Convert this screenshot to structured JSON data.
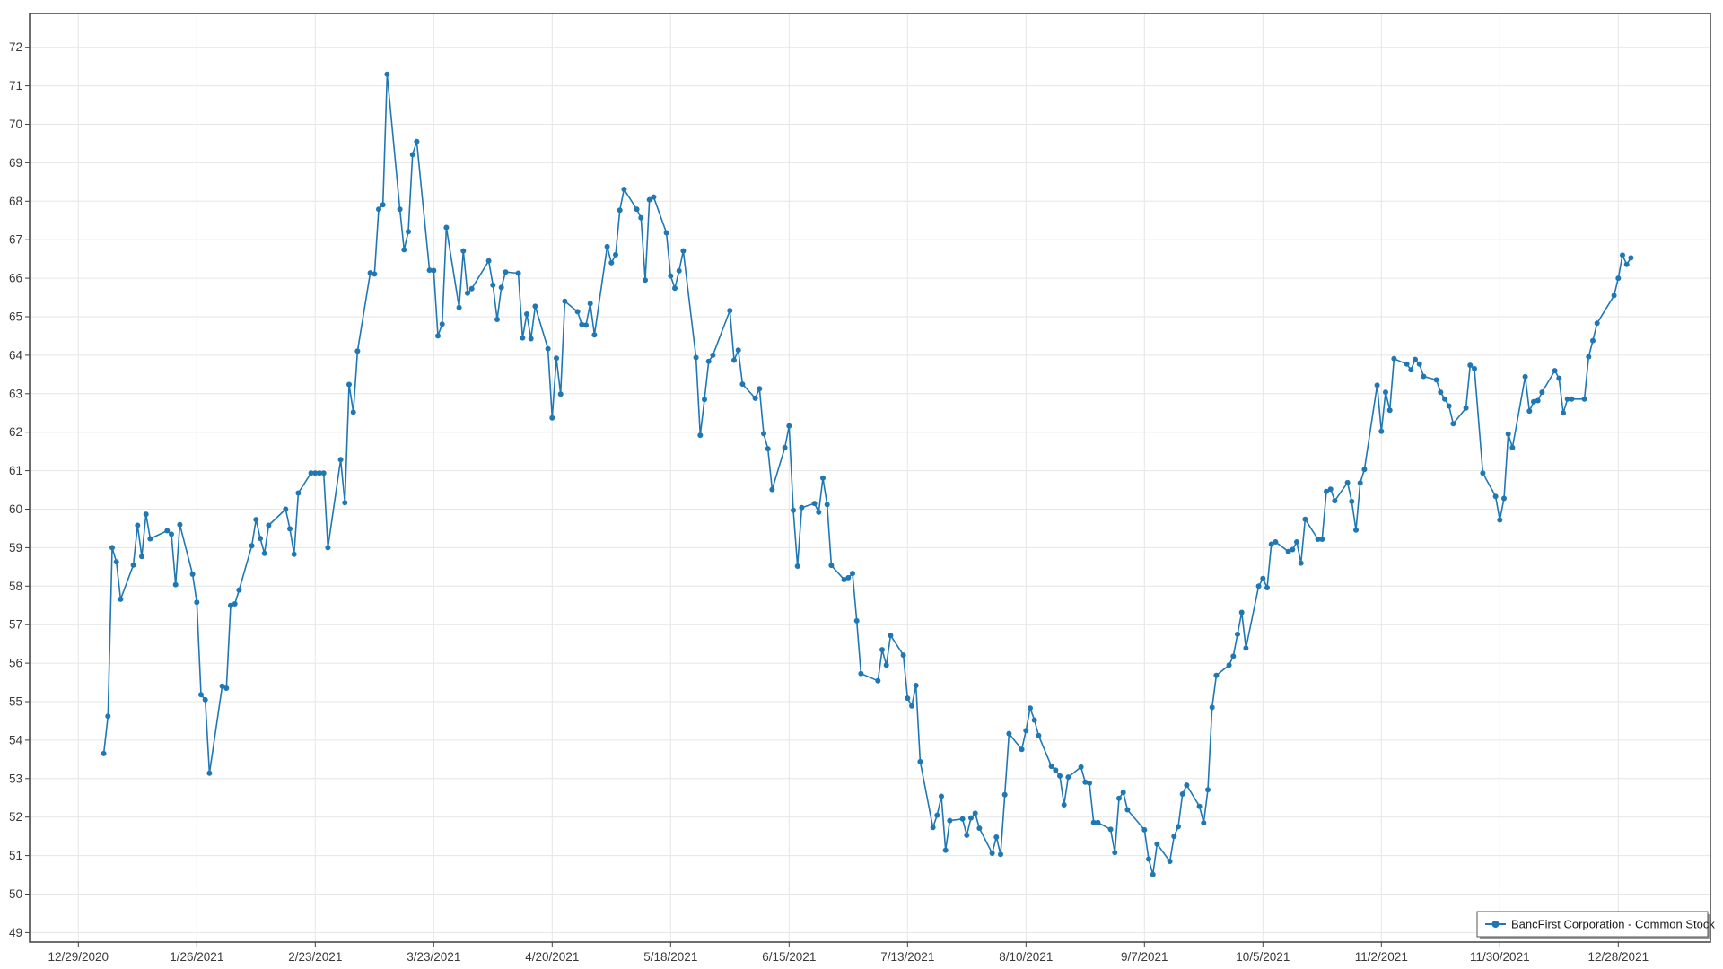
{
  "chart_data": {
    "type": "line",
    "title": "",
    "legend": "BancFirst Corporation - Common Stock",
    "legend_position": "inside-bottom-right",
    "series_color": "#1f77b4",
    "grid_color": "#e6e6e6",
    "axis_color": "#404040",
    "background_color": "#ffffff",
    "marker": "circle",
    "grid": true,
    "ylabel": "",
    "xlabel": "",
    "y_axis": {
      "min": 49,
      "max": 72,
      "tick_step": 1,
      "tick_labels": [
        "49",
        "50",
        "51",
        "52",
        "53",
        "54",
        "55",
        "56",
        "57",
        "58",
        "59",
        "60",
        "61",
        "62",
        "63",
        "64",
        "65",
        "66",
        "67",
        "68",
        "69",
        "70",
        "71",
        "72"
      ]
    },
    "x_axis": {
      "type": "date",
      "tick_interval_days": 28,
      "tick_dates": [
        "2020-12-29",
        "2021-01-26",
        "2021-02-23",
        "2021-03-23",
        "2021-04-20",
        "2021-05-18",
        "2021-06-15",
        "2021-07-13",
        "2021-08-10",
        "2021-09-07",
        "2021-10-05",
        "2021-11-02",
        "2021-11-30",
        "2021-12-28"
      ],
      "tick_labels": [
        "12/29/2020",
        "1/26/2021",
        "2/23/2021",
        "3/23/2021",
        "4/20/2021",
        "5/18/2021",
        "6/15/2021",
        "7/13/2021",
        "8/10/2021",
        "9/7/2021",
        "10/5/2021",
        "11/2/2021",
        "11/30/2021",
        "12/28/2021"
      ]
    },
    "dates": [
      "2021-01-04",
      "2021-01-05",
      "2021-01-06",
      "2021-01-07",
      "2021-01-08",
      "2021-01-11",
      "2021-01-12",
      "2021-01-13",
      "2021-01-14",
      "2021-01-15",
      "2021-01-19",
      "2021-01-20",
      "2021-01-21",
      "2021-01-22",
      "2021-01-25",
      "2021-01-26",
      "2021-01-27",
      "2021-01-28",
      "2021-01-29",
      "2021-02-01",
      "2021-02-02",
      "2021-02-03",
      "2021-02-04",
      "2021-02-05",
      "2021-02-08",
      "2021-02-09",
      "2021-02-10",
      "2021-02-11",
      "2021-02-12",
      "2021-02-16",
      "2021-02-17",
      "2021-02-18",
      "2021-02-19",
      "2021-02-22",
      "2021-02-23",
      "2021-02-24",
      "2021-02-25",
      "2021-02-26",
      "2021-03-01",
      "2021-03-02",
      "2021-03-03",
      "2021-03-04",
      "2021-03-05",
      "2021-03-08",
      "2021-03-09",
      "2021-03-10",
      "2021-03-11",
      "2021-03-12",
      "2021-03-15",
      "2021-03-16",
      "2021-03-17",
      "2021-03-18",
      "2021-03-19",
      "2021-03-22",
      "2021-03-23",
      "2021-03-24",
      "2021-03-25",
      "2021-03-26",
      "2021-03-29",
      "2021-03-30",
      "2021-03-31",
      "2021-04-01",
      "2021-04-05",
      "2021-04-06",
      "2021-04-07",
      "2021-04-08",
      "2021-04-09",
      "2021-04-12",
      "2021-04-13",
      "2021-04-14",
      "2021-04-15",
      "2021-04-16",
      "2021-04-19",
      "2021-04-20",
      "2021-04-21",
      "2021-04-22",
      "2021-04-23",
      "2021-04-26",
      "2021-04-27",
      "2021-04-28",
      "2021-04-29",
      "2021-04-30",
      "2021-05-03",
      "2021-05-04",
      "2021-05-05",
      "2021-05-06",
      "2021-05-07",
      "2021-05-10",
      "2021-05-11",
      "2021-05-12",
      "2021-05-13",
      "2021-05-14",
      "2021-05-17",
      "2021-05-18",
      "2021-05-19",
      "2021-05-20",
      "2021-05-21",
      "2021-05-24",
      "2021-05-25",
      "2021-05-26",
      "2021-05-27",
      "2021-05-28",
      "2021-06-01",
      "2021-06-02",
      "2021-06-03",
      "2021-06-04",
      "2021-06-07",
      "2021-06-08",
      "2021-06-09",
      "2021-06-10",
      "2021-06-11",
      "2021-06-14",
      "2021-06-15",
      "2021-06-16",
      "2021-06-17",
      "2021-06-18",
      "2021-06-21",
      "2021-06-22",
      "2021-06-23",
      "2021-06-24",
      "2021-06-25",
      "2021-06-28",
      "2021-06-29",
      "2021-06-30",
      "2021-07-01",
      "2021-07-02",
      "2021-07-06",
      "2021-07-07",
      "2021-07-08",
      "2021-07-09",
      "2021-07-12",
      "2021-07-13",
      "2021-07-14",
      "2021-07-15",
      "2021-07-16",
      "2021-07-19",
      "2021-07-20",
      "2021-07-21",
      "2021-07-22",
      "2021-07-23",
      "2021-07-26",
      "2021-07-27",
      "2021-07-28",
      "2021-07-29",
      "2021-07-30",
      "2021-08-02",
      "2021-08-03",
      "2021-08-04",
      "2021-08-05",
      "2021-08-06",
      "2021-08-09",
      "2021-08-10",
      "2021-08-11",
      "2021-08-12",
      "2021-08-13",
      "2021-08-16",
      "2021-08-17",
      "2021-08-18",
      "2021-08-19",
      "2021-08-20",
      "2021-08-23",
      "2021-08-24",
      "2021-08-25",
      "2021-08-26",
      "2021-08-27",
      "2021-08-30",
      "2021-08-31",
      "2021-09-01",
      "2021-09-02",
      "2021-09-03",
      "2021-09-07",
      "2021-09-08",
      "2021-09-09",
      "2021-09-10",
      "2021-09-13",
      "2021-09-14",
      "2021-09-15",
      "2021-09-16",
      "2021-09-17",
      "2021-09-20",
      "2021-09-21",
      "2021-09-22",
      "2021-09-23",
      "2021-09-24",
      "2021-09-27",
      "2021-09-28",
      "2021-09-29",
      "2021-09-30",
      "2021-10-01",
      "2021-10-04",
      "2021-10-05",
      "2021-10-06",
      "2021-10-07",
      "2021-10-08",
      "2021-10-11",
      "2021-10-12",
      "2021-10-13",
      "2021-10-14",
      "2021-10-15",
      "2021-10-18",
      "2021-10-19",
      "2021-10-20",
      "2021-10-21",
      "2021-10-22",
      "2021-10-25",
      "2021-10-26",
      "2021-10-27",
      "2021-10-28",
      "2021-10-29",
      "2021-11-01",
      "2021-11-02",
      "2021-11-03",
      "2021-11-04",
      "2021-11-05",
      "2021-11-08",
      "2021-11-09",
      "2021-11-10",
      "2021-11-11",
      "2021-11-12",
      "2021-11-15",
      "2021-11-16",
      "2021-11-17",
      "2021-11-18",
      "2021-11-19",
      "2021-11-22",
      "2021-11-23",
      "2021-11-24",
      "2021-11-26",
      "2021-11-29",
      "2021-11-30",
      "2021-12-01",
      "2021-12-02",
      "2021-12-03",
      "2021-12-06",
      "2021-12-07",
      "2021-12-08",
      "2021-12-09",
      "2021-12-10",
      "2021-12-13",
      "2021-12-14",
      "2021-12-15",
      "2021-12-16",
      "2021-12-17",
      "2021-12-20",
      "2021-12-21",
      "2021-12-22",
      "2021-12-23",
      "2021-12-27",
      "2021-12-28",
      "2021-12-29",
      "2021-12-30",
      "2021-12-31"
    ],
    "values": [
      53.65,
      54.62,
      59.0,
      58.63,
      57.66,
      58.55,
      59.58,
      58.77,
      59.87,
      59.23,
      59.44,
      59.35,
      58.04,
      59.6,
      58.31,
      57.58,
      55.18,
      55.05,
      53.14,
      55.4,
      55.35,
      57.5,
      57.54,
      57.9,
      59.05,
      59.73,
      59.24,
      58.85,
      59.58,
      60.0,
      59.49,
      58.83,
      60.42,
      60.94,
      60.94,
      60.94,
      60.94,
      59.0,
      61.29,
      60.17,
      63.24,
      62.52,
      64.11,
      66.14,
      66.11,
      67.79,
      67.91,
      71.3,
      67.79,
      66.74,
      67.21,
      69.21,
      69.55,
      66.21,
      66.2,
      64.5,
      64.81,
      67.32,
      65.24,
      66.71,
      65.61,
      65.73,
      66.45,
      65.82,
      64.93,
      65.76,
      66.16,
      66.13,
      64.45,
      65.07,
      64.43,
      65.27,
      64.17,
      62.37,
      63.92,
      62.99,
      65.4,
      65.13,
      64.8,
      64.78,
      65.34,
      64.53,
      66.82,
      66.4,
      66.61,
      67.77,
      68.31,
      67.79,
      67.57,
      65.95,
      68.04,
      68.11,
      67.18,
      66.06,
      65.74,
      66.19,
      66.71,
      63.94,
      61.92,
      62.85,
      63.84,
      64.0,
      65.16,
      63.87,
      64.13,
      63.25,
      62.88,
      63.13,
      61.96,
      61.57,
      60.51,
      61.6,
      62.16,
      59.97,
      58.52,
      60.04,
      60.15,
      59.92,
      60.81,
      60.12,
      58.54,
      58.17,
      58.22,
      58.33,
      57.1,
      55.73,
      55.54,
      56.35,
      55.95,
      56.72,
      56.21,
      55.09,
      54.89,
      55.42,
      53.44,
      51.73,
      52.05,
      52.54,
      51.14,
      51.91,
      51.95,
      51.53,
      51.98,
      52.1,
      51.71,
      51.06,
      51.48,
      51.03,
      52.58,
      54.17,
      53.76,
      54.25,
      54.83,
      54.52,
      54.12,
      53.32,
      53.22,
      53.07,
      52.32,
      53.04,
      53.3,
      52.91,
      52.88,
      51.86,
      51.86,
      51.68,
      51.08,
      52.49,
      52.64,
      52.19,
      51.67,
      50.91,
      50.51,
      51.3,
      50.85,
      51.5,
      51.75,
      52.6,
      52.83,
      52.28,
      51.85,
      52.71,
      54.85,
      55.68,
      55.95,
      56.18,
      56.75,
      57.32,
      56.39,
      58.0,
      58.2,
      57.96,
      59.09,
      59.15,
      58.9,
      58.95,
      59.15,
      58.6,
      59.74,
      59.22,
      59.22,
      60.46,
      60.52,
      60.22,
      60.69,
      60.2,
      59.46,
      60.68,
      61.03,
      63.22,
      62.02,
      63.04,
      62.57,
      63.91,
      63.77,
      63.62,
      63.89,
      63.77,
      63.45,
      63.36,
      63.04,
      62.86,
      62.68,
      62.22,
      62.63,
      63.74,
      63.65,
      60.94,
      60.33,
      59.72,
      60.28,
      61.95,
      61.6,
      63.44,
      62.55,
      62.79,
      62.82,
      63.04,
      63.6,
      63.4,
      62.5,
      62.86,
      62.86,
      62.86,
      63.96,
      64.38,
      64.83,
      65.55,
      66.0,
      66.6,
      66.36,
      66.53
    ]
  }
}
